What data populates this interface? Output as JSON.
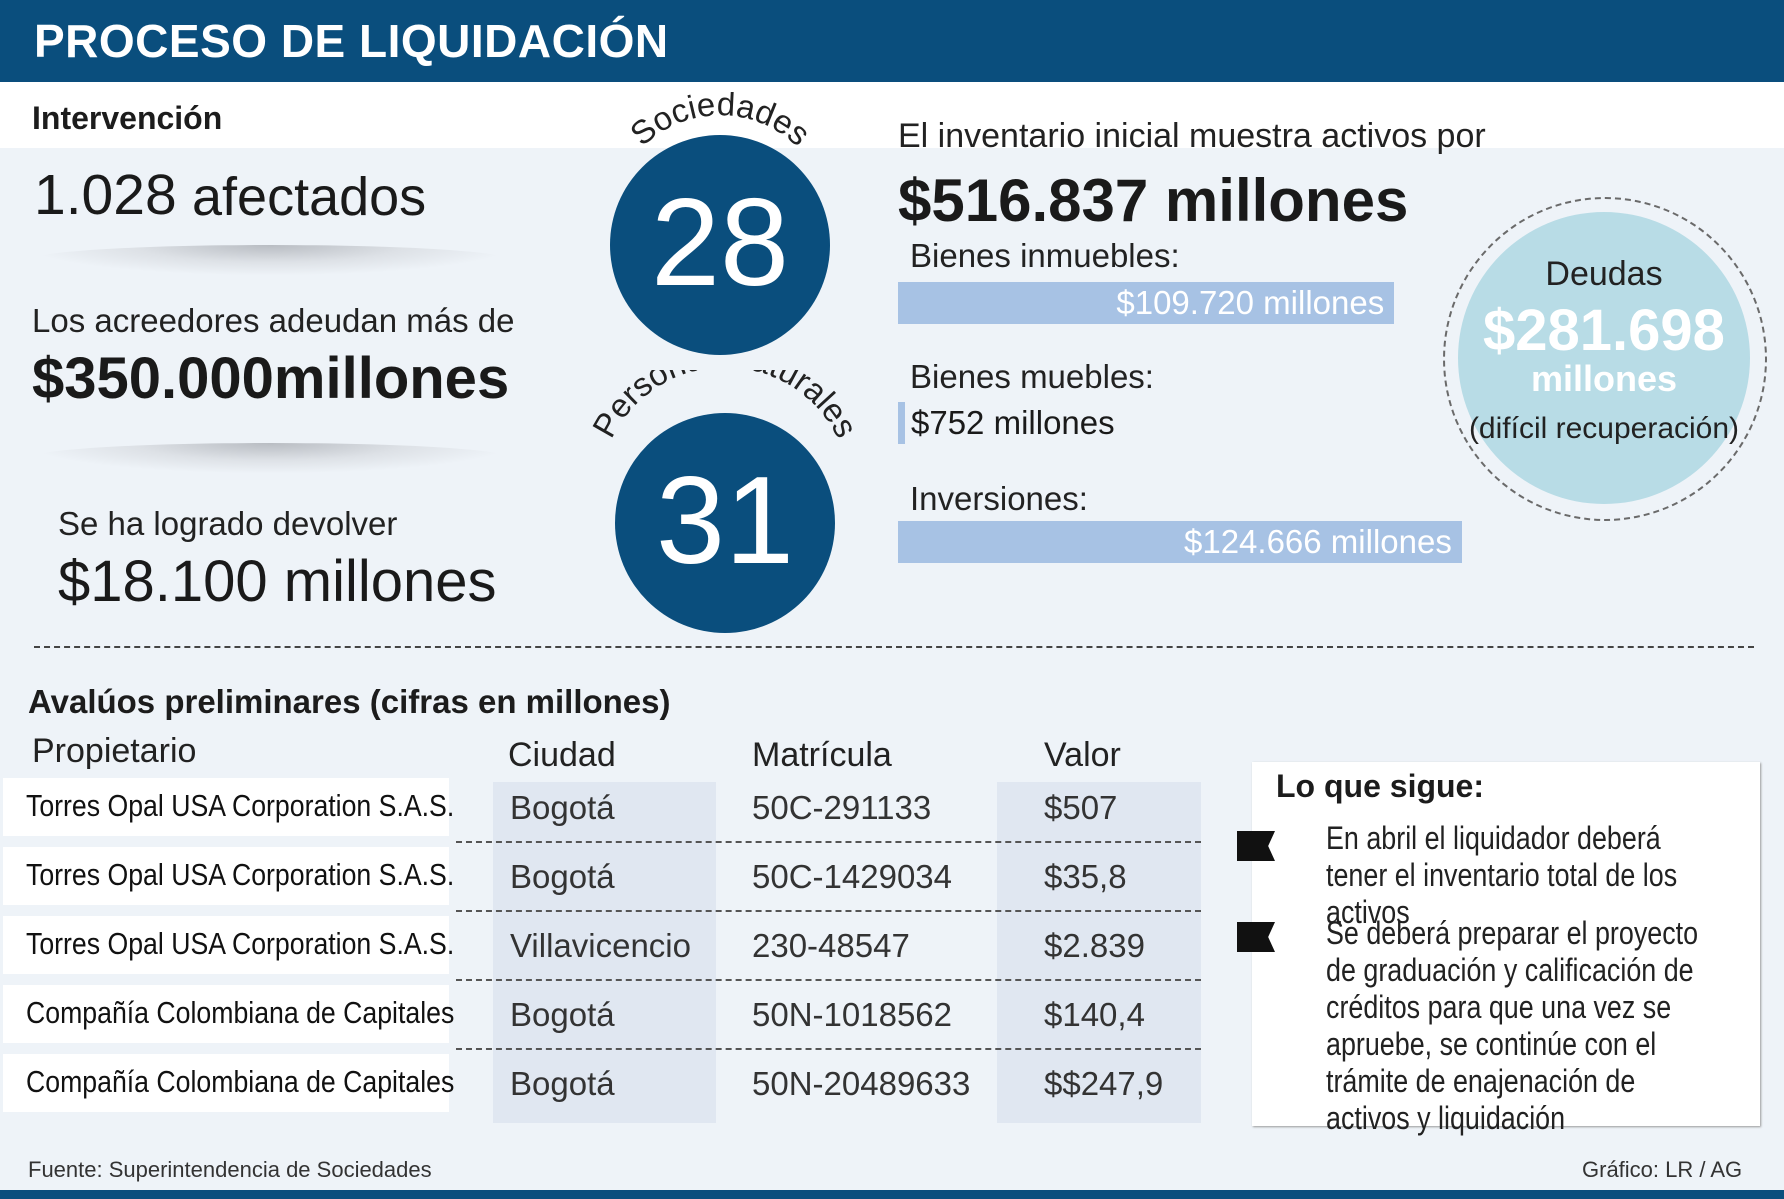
{
  "header": {
    "title": "PROCESO DE LIQUIDACIÓN"
  },
  "intervention": {
    "title": "Intervención",
    "affected_number": "1.028",
    "affected_label": "afectados",
    "creditors_text": "Los acreedores adeudan más de",
    "creditors_amount": "$350.000millones",
    "returned_text": "Se ha logrado devolver",
    "returned_amount": "$18.100 millones"
  },
  "circles": {
    "societies_label": "Sociedades",
    "societies_value": "28",
    "persons_label": "Personas naturales",
    "persons_value": "31"
  },
  "inventory": {
    "intro": "El inventario inicial muestra activos por",
    "total": "$516.837 millones"
  },
  "debts": {
    "label": "Deudas",
    "amount": "$281.698",
    "unit": "millones",
    "note": "(difícil recuperación)"
  },
  "chart_data": {
    "type": "bar",
    "orientation": "horizontal",
    "title": "El inventario inicial muestra activos por $516.837 millones",
    "unit": "millones",
    "categories": [
      "Bienes inmuebles:",
      "Bienes muebles:",
      "Inversiones:"
    ],
    "values": [
      109720,
      752,
      124666
    ],
    "value_labels": [
      "$109.720 millones",
      "$752 millones",
      "$124.666 millones"
    ],
    "bar_color": "#a7c2e4"
  },
  "appraisals": {
    "title": "Avalúos preliminares  (cifras en millones)",
    "columns": [
      "Propietario",
      "Ciudad",
      "Matrícula",
      "Valor"
    ],
    "rows": [
      {
        "owner": "Torres Opal USA Corporation S.A.S.",
        "city": "Bogotá",
        "registration": "50C-291133",
        "value": "$507"
      },
      {
        "owner": "Torres Opal USA Corporation S.A.S.",
        "city": "Bogotá",
        "registration": "50C-1429034",
        "value": "$35,8"
      },
      {
        "owner": "Torres Opal USA Corporation S.A.S.",
        "city": "Villavicencio",
        "registration": "230-48547",
        "value": "$2.839"
      },
      {
        "owner": "Compañía Colombiana de Capitales",
        "city": "Bogotá",
        "registration": "50N-1018562",
        "value": "$140,4"
      },
      {
        "owner": "Compañía Colombiana de Capitales",
        "city": "Bogotá",
        "registration": "50N-20489633",
        "value": "$$247,9"
      }
    ]
  },
  "next_steps": {
    "title": "Lo que sigue:",
    "items": [
      "En abril el liquidador deberá tener el inventario total de los activos",
      "Se deberá preparar el proyecto de graduación y calificación de créditos para que una vez se  apruebe, se continúe con el trámite de enajenación de activos y liquidación"
    ]
  },
  "footer": {
    "source": "Fuente: Superintendencia de Sociedades",
    "credit": "Gráfico: LR / AG"
  },
  "colors": {
    "primary": "#0a4e7d",
    "bar": "#a7c2e4",
    "debt_circle": "#b8dce6",
    "background": "#eef3f8"
  }
}
